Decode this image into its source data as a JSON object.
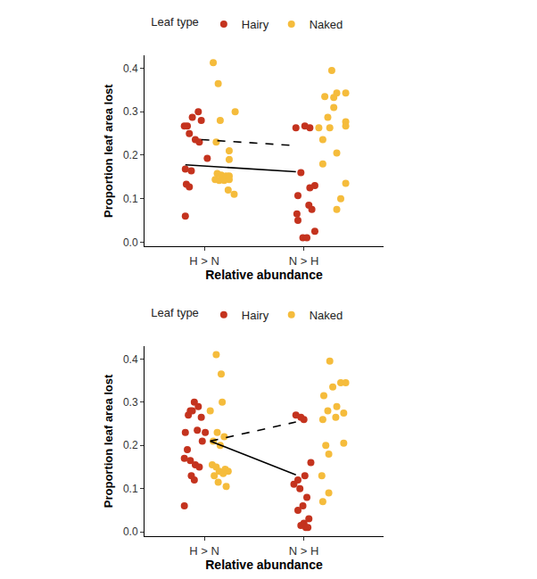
{
  "chart_data": [
    {
      "type": "scatter",
      "x_label": "Relative abundance",
      "y_label": "Proportion leaf area lost",
      "legend": "top",
      "legend_title": "Leaf type",
      "xlim": [
        0.4,
        2.8
      ],
      "xticks": [
        {
          "value": 1,
          "label": "H > N"
        },
        {
          "value": 2,
          "label": "N > H"
        }
      ],
      "ylim": [
        -0.01,
        0.43
      ],
      "yticks": [
        {
          "value": 0,
          "label": "0.0"
        },
        0.1,
        0.2,
        0.3,
        0.4
      ],
      "series": [
        {
          "name": "Hairy",
          "color": "#C4331E",
          "marker": "circle",
          "x": [
            0.94,
            0.88,
            0.97,
            0.83,
            0.8,
            0.85,
            0.91,
            0.95,
            1.03,
            0.81,
            0.87,
            0.82,
            0.85,
            0.81,
            1.92,
            2.01,
            2.06,
            1.97,
            2.11,
            2.06,
            1.94,
            2.05,
            1.93,
            1.94,
            2.08,
            2.11,
            1.99,
            2.03
          ],
          "values": [
            0.3,
            0.287,
            0.28,
            0.267,
            0.267,
            0.25,
            0.236,
            0.23,
            0.193,
            0.168,
            0.164,
            0.133,
            0.127,
            0.06,
            0.263,
            0.267,
            0.263,
            0.16,
            0.13,
            0.125,
            0.107,
            0.085,
            0.065,
            0.05,
            0.075,
            0.025,
            0.01,
            0.01
          ]
        },
        {
          "name": "Naked",
          "color": "#F5BC3C",
          "marker": "circle",
          "x": [
            1.09,
            1.14,
            1.16,
            1.31,
            1.12,
            1.25,
            1.25,
            1.13,
            1.17,
            1.22,
            1.25,
            1.11,
            1.15,
            1.2,
            1.25,
            1.24,
            1.3,
            2.28,
            2.33,
            2.42,
            2.3,
            2.21,
            2.3,
            2.42,
            2.24,
            2.42,
            2.26,
            2.15,
            2.19,
            2.33,
            2.19,
            2.42,
            2.37,
            2.33
          ],
          "values": [
            0.413,
            0.365,
            0.28,
            0.3,
            0.23,
            0.21,
            0.19,
            0.158,
            0.154,
            0.152,
            0.152,
            0.144,
            0.142,
            0.142,
            0.144,
            0.12,
            0.11,
            0.395,
            0.343,
            0.343,
            0.333,
            0.335,
            0.31,
            0.277,
            0.287,
            0.267,
            0.263,
            0.263,
            0.236,
            0.205,
            0.18,
            0.135,
            0.1,
            0.075
          ]
        },
        {
          "type": "line",
          "color": "#000000",
          "line_style": "solid",
          "x": [
            0.81,
            1.92
          ],
          "values": [
            0.178,
            0.162
          ]
        },
        {
          "type": "line",
          "color": "#000000",
          "line_style": "dashed",
          "x": [
            0.97,
            1.92
          ],
          "values": [
            0.236,
            0.222
          ]
        }
      ]
    },
    {
      "type": "scatter",
      "x_label": "Relative abundance",
      "y_label": "Proportion leaf area lost",
      "legend": "top",
      "legend_title": "Leaf type",
      "xlim": [
        0.4,
        2.8
      ],
      "xticks": [
        {
          "value": 1,
          "label": "H > N"
        },
        {
          "value": 2,
          "label": "N > H"
        }
      ],
      "ylim": [
        -0.01,
        0.43
      ],
      "yticks": [
        {
          "value": 0,
          "label": "0.0"
        },
        0.1,
        0.2,
        0.3,
        0.4
      ],
      "series": [
        {
          "name": "Hairy",
          "color": "#C4331E",
          "marker": "circle",
          "x": [
            0.9,
            0.94,
            0.86,
            0.84,
            0.97,
            0.88,
            0.93,
            1.01,
            0.81,
            0.98,
            0.83,
            0.8,
            0.86,
            0.91,
            0.95,
            0.87,
            0.9,
            0.8,
            1.92,
            1.97,
            2.0,
            2.07,
            2.01,
            1.94,
            1.96,
            1.9,
            2.03,
            1.99,
            1.94,
            2.05,
            2.0,
            1.97,
            2.02,
            2.04
          ],
          "values": [
            0.3,
            0.29,
            0.28,
            0.27,
            0.265,
            0.28,
            0.235,
            0.23,
            0.23,
            0.21,
            0.19,
            0.17,
            0.165,
            0.155,
            0.15,
            0.13,
            0.12,
            0.06,
            0.27,
            0.265,
            0.26,
            0.16,
            0.13,
            0.12,
            0.1,
            0.11,
            0.08,
            0.06,
            0.05,
            0.03,
            0.02,
            0.015,
            0.01,
            0.01
          ]
        },
        {
          "name": "Naked",
          "color": "#F5BC3C",
          "marker": "circle",
          "x": [
            1.12,
            1.17,
            1.18,
            1.06,
            1.13,
            1.2,
            1.16,
            1.09,
            1.08,
            1.12,
            1.21,
            1.15,
            1.24,
            1.19,
            1.1,
            1.14,
            1.22,
            2.26,
            2.37,
            2.42,
            2.29,
            2.2,
            2.33,
            2.24,
            2.4,
            2.32,
            2.19,
            2.22,
            2.4,
            2.25,
            2.18,
            2.25,
            2.19
          ],
          "values": [
            0.41,
            0.365,
            0.3,
            0.28,
            0.23,
            0.22,
            0.2,
            0.21,
            0.155,
            0.15,
            0.145,
            0.14,
            0.14,
            0.135,
            0.13,
            0.115,
            0.105,
            0.395,
            0.345,
            0.345,
            0.335,
            0.315,
            0.29,
            0.28,
            0.275,
            0.265,
            0.26,
            0.2,
            0.205,
            0.18,
            0.13,
            0.09,
            0.07
          ]
        },
        {
          "type": "line",
          "color": "#000000",
          "line_style": "solid",
          "x": [
            1.06,
            1.92
          ],
          "values": [
            0.21,
            0.132
          ]
        },
        {
          "type": "line",
          "color": "#000000",
          "line_style": "dashed",
          "x": [
            1.06,
            1.92
          ],
          "values": [
            0.21,
            0.254
          ]
        }
      ]
    }
  ]
}
